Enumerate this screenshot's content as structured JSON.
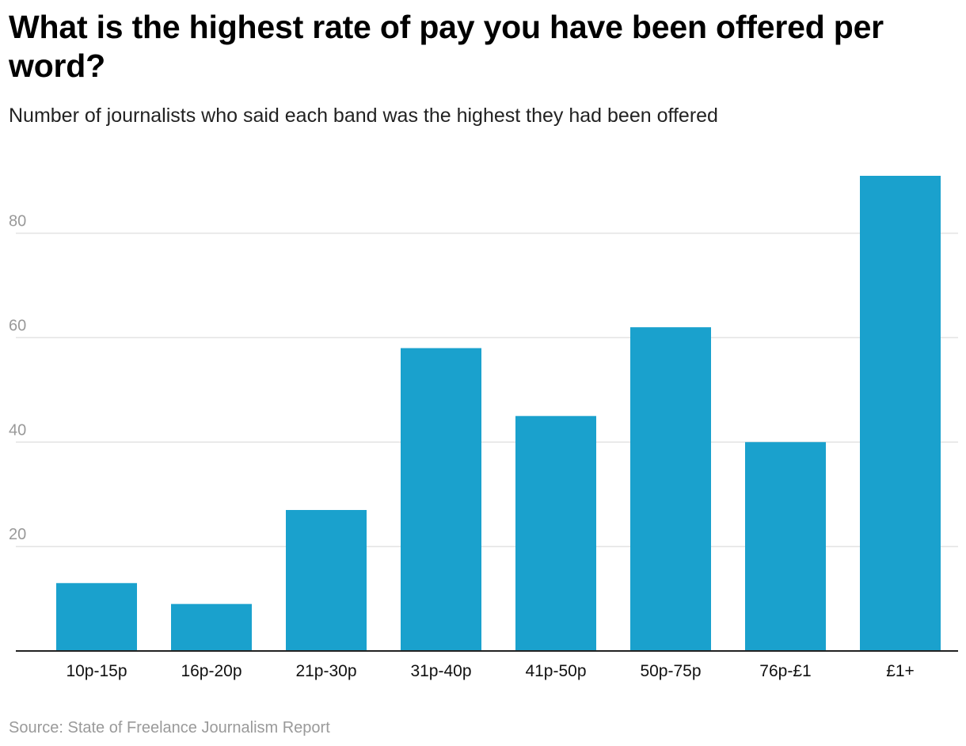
{
  "header": {
    "title": "What is the highest rate of pay you have been offered per word?",
    "subtitle": "Number of journalists who said each band was the highest they had been offered"
  },
  "footer": {
    "source": "Source: State of Freelance Journalism Report"
  },
  "colors": {
    "bar": "#1aa1cd",
    "grid": "#e3e3e3",
    "axis": "#222222"
  },
  "chart_data": {
    "type": "bar",
    "title": "What is the highest rate of pay you have been offered per word?",
    "subtitle": "Number of journalists who said each band was the highest they had been offered",
    "xlabel": "",
    "ylabel": "",
    "categories": [
      "10p-15p",
      "16p-20p",
      "21p-30p",
      "31p-40p",
      "41p-50p",
      "50p-75p",
      "76p-£1",
      "£1+"
    ],
    "values": [
      13,
      9,
      27,
      58,
      45,
      62,
      40,
      91
    ],
    "ylim": [
      0,
      91
    ],
    "yticks": [
      20,
      40,
      60,
      80
    ],
    "grid": true,
    "legend": "none"
  }
}
